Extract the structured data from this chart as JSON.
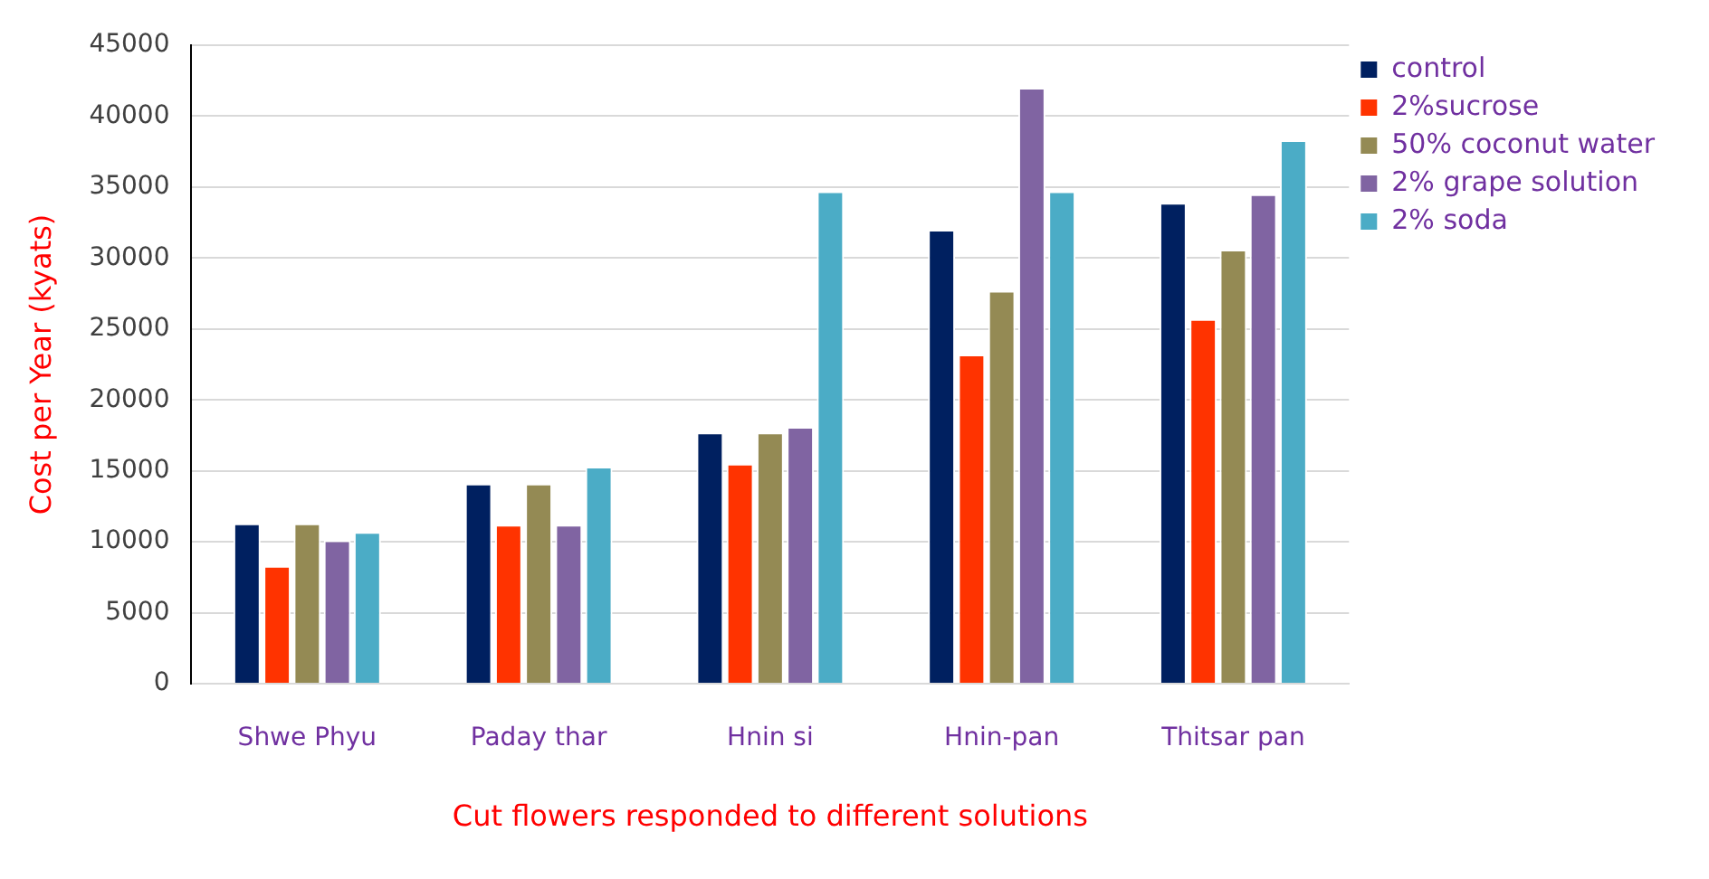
{
  "chart_data": {
    "type": "bar",
    "xlabel": "Cut flowers responded to different solutions",
    "ylabel": "Cost per Year (kyats)",
    "categories": [
      "Shwe Phyu",
      "Paday thar",
      "Hnin si",
      "Hnin-pan",
      "Thitsar pan"
    ],
    "series": [
      {
        "name": "control",
        "color": "#002060",
        "values": [
          11300,
          14100,
          17700,
          32000,
          33900
        ]
      },
      {
        "name": "2%sucrose",
        "color": "#ff3300",
        "values": [
          8300,
          11200,
          15500,
          23200,
          25700
        ]
      },
      {
        "name": "50% coconut water",
        "color": "#948a54",
        "values": [
          11300,
          14100,
          17700,
          27700,
          30600
        ]
      },
      {
        "name": "2% grape solution",
        "color": "#8064a2",
        "values": [
          10100,
          11200,
          18100,
          42000,
          34500
        ]
      },
      {
        "name": "2% soda",
        "color": "#4bacc6",
        "values": [
          10700,
          15300,
          34700,
          34700,
          38300
        ]
      }
    ],
    "ylim": [
      0,
      45000
    ],
    "yticks": [
      0,
      5000,
      10000,
      15000,
      20000,
      25000,
      30000,
      35000,
      40000,
      45000
    ],
    "grid": "y",
    "legend": "top right"
  }
}
